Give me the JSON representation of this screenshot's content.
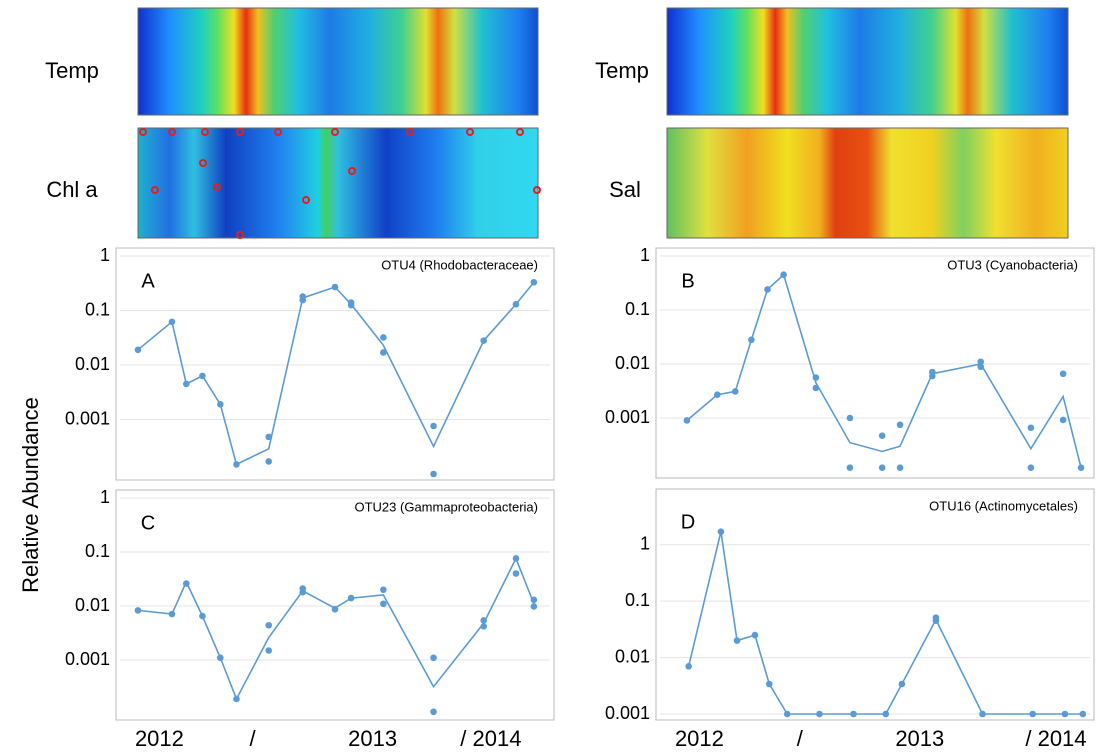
{
  "heatmaps": [
    {
      "label": "Temp"
    },
    {
      "label": "Chl a"
    },
    {
      "label": "Temp"
    },
    {
      "label": "Sal"
    }
  ],
  "y_axis_label": "Relative Abundance",
  "chart_data": [
    {
      "type": "line",
      "panel": "A",
      "title": "OTU4 (Rhodobacteraceae)",
      "log_scale": true,
      "grid": true,
      "color": "#5b9bd5",
      "xlim": [
        0,
        24
      ],
      "ylim": [
        0.0001,
        1
      ],
      "yticks": [
        1,
        0.1,
        0.01,
        0.001
      ],
      "points": {
        "x": [
          1.0,
          2.9,
          3.7,
          4.6,
          5.6,
          6.5,
          8.3,
          8.3,
          10.2,
          10.2,
          12.0,
          12.9,
          12.9,
          14.7,
          14.7,
          17.5,
          17.5,
          20.3,
          22.1,
          23.1
        ],
        "values": [
          0.019,
          0.062,
          0.0045,
          0.0063,
          0.0019,
          0.00015,
          0.00048,
          0.00017,
          0.18,
          0.155,
          0.27,
          0.14,
          0.125,
          0.032,
          0.017,
          0.00076,
          0.0001,
          0.028,
          0.13,
          0.33
        ]
      },
      "line": {
        "x": [
          1.0,
          2.9,
          3.7,
          4.6,
          5.6,
          6.5,
          8.3,
          10.2,
          12.0,
          12.9,
          14.7,
          17.5,
          20.3,
          22.1,
          23.1
        ],
        "values": [
          0.019,
          0.062,
          0.0045,
          0.0063,
          0.0019,
          0.00015,
          0.00029,
          0.17,
          0.27,
          0.13,
          0.023,
          0.00032,
          0.028,
          0.13,
          0.33
        ]
      }
    },
    {
      "type": "line",
      "panel": "B",
      "title": "OTU3 (Cyanobacteria)",
      "log_scale": true,
      "grid": true,
      "color": "#5b9bd5",
      "xlim": [
        0,
        24
      ],
      "ylim": [
        0.0001,
        1
      ],
      "yticks": [
        1,
        0.1,
        0.01,
        0.001
      ],
      "points": {
        "x": [
          1.5,
          3.2,
          4.2,
          5.1,
          6.0,
          6.9,
          8.7,
          8.7,
          10.6,
          10.6,
          12.4,
          12.4,
          13.4,
          13.4,
          15.2,
          15.2,
          17.9,
          17.9,
          20.7,
          20.7,
          22.5,
          22.5,
          23.5
        ],
        "values": [
          0.0009,
          0.0027,
          0.0031,
          0.028,
          0.24,
          0.45,
          0.0056,
          0.0036,
          0.001,
          0.00012,
          0.00047,
          0.00012,
          0.00075,
          0.00012,
          0.0071,
          0.006,
          0.011,
          0.0089,
          0.00066,
          0.00012,
          0.0066,
          0.00092,
          0.00012
        ]
      },
      "line": {
        "x": [
          1.5,
          3.2,
          4.2,
          5.1,
          6.0,
          6.9,
          8.7,
          10.6,
          12.4,
          13.4,
          15.2,
          17.9,
          20.7,
          22.5,
          23.5
        ],
        "values": [
          0.0009,
          0.0027,
          0.0031,
          0.028,
          0.24,
          0.45,
          0.0045,
          0.00035,
          0.00024,
          0.0003,
          0.0066,
          0.01,
          0.00027,
          0.0025,
          0.00012
        ]
      }
    },
    {
      "type": "line",
      "panel": "C",
      "title": "OTU23 (Gammaproteobacteria)",
      "log_scale": true,
      "grid": true,
      "color": "#5b9bd5",
      "xlim": [
        0,
        24
      ],
      "ylim": [
        0.0001,
        1
      ],
      "yticks": [
        1,
        0.1,
        0.01,
        0.001
      ],
      "xticks": [
        {
          "value": 2.2,
          "label": "2012"
        },
        {
          "value": 7.4,
          "label": "/"
        },
        {
          "value": 14.1,
          "label": "2013"
        },
        {
          "value": 20.7,
          "label": "/ 2014"
        }
      ],
      "points": {
        "x": [
          1.0,
          2.9,
          3.7,
          4.6,
          5.6,
          6.5,
          8.3,
          8.3,
          10.2,
          10.2,
          12.0,
          12.9,
          14.7,
          14.7,
          17.5,
          17.5,
          20.3,
          20.3,
          22.1,
          22.1,
          23.1,
          23.1
        ],
        "values": [
          0.0083,
          0.0071,
          0.026,
          0.0065,
          0.0011,
          0.00019,
          0.0044,
          0.0015,
          0.021,
          0.018,
          0.0087,
          0.014,
          0.02,
          0.011,
          0.0011,
          0.00011,
          0.0054,
          0.0042,
          0.076,
          0.04,
          0.013,
          0.0098
        ]
      },
      "line": {
        "x": [
          1.0,
          2.9,
          3.7,
          4.6,
          5.6,
          6.5,
          8.3,
          10.2,
          12.0,
          12.9,
          14.7,
          17.5,
          20.3,
          22.1,
          23.1
        ],
        "values": [
          0.0083,
          0.0071,
          0.028,
          0.0065,
          0.0011,
          0.00019,
          0.0026,
          0.019,
          0.0091,
          0.014,
          0.016,
          0.00032,
          0.0048,
          0.076,
          0.011
        ]
      }
    },
    {
      "type": "line",
      "panel": "D",
      "title": "OTU16 (Actinomycetales)",
      "log_scale": true,
      "grid": true,
      "color": "#5b9bd5",
      "xlim": [
        0,
        24
      ],
      "ylim": [
        0.001,
        7
      ],
      "yticks": [
        1,
        0.1,
        0.01,
        0.001
      ],
      "xticks": [
        {
          "value": 2.2,
          "label": "2012"
        },
        {
          "value": 7.8,
          "label": "/"
        },
        {
          "value": 14.5,
          "label": "2013"
        },
        {
          "value": 22.1,
          "label": "/ 2014"
        }
      ],
      "points": {
        "x": [
          1.6,
          3.4,
          4.3,
          5.3,
          6.1,
          7.1,
          8.9,
          10.8,
          12.6,
          13.5,
          15.4,
          15.4,
          18.0,
          20.8,
          22.6,
          23.6
        ],
        "values": [
          0.007,
          1.7,
          0.02,
          0.025,
          0.0034,
          0.001,
          0.001,
          0.001,
          0.001,
          0.0034,
          0.051,
          0.045,
          0.001,
          0.001,
          0.001,
          0.001
        ]
      },
      "line": {
        "x": [
          1.6,
          3.4,
          4.3,
          5.3,
          6.1,
          7.1,
          8.9,
          10.8,
          12.6,
          13.5,
          15.4,
          18.0,
          20.8,
          22.6,
          23.6
        ],
        "values": [
          0.007,
          1.7,
          0.02,
          0.025,
          0.0034,
          0.001,
          0.001,
          0.001,
          0.001,
          0.0034,
          0.047,
          0.001,
          0.001,
          0.001,
          0.001
        ]
      }
    }
  ]
}
